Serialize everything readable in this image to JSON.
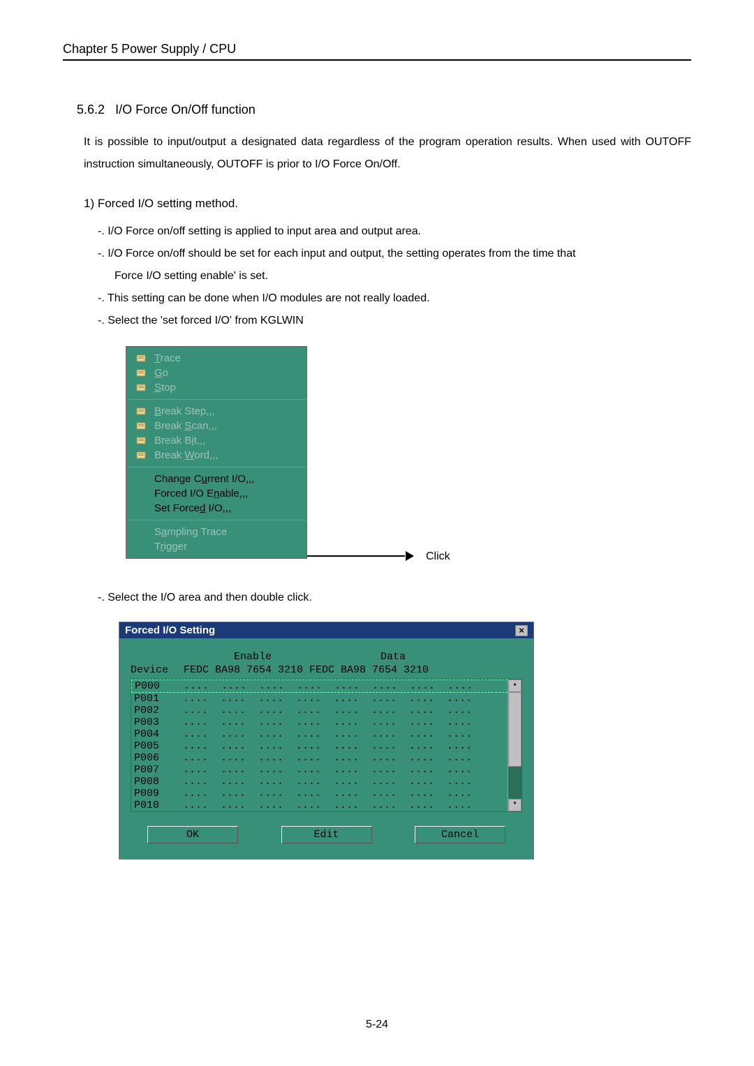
{
  "chapter_header": "Chapter 5    Power Supply / CPU",
  "section": {
    "number": "5.6.2",
    "title": "I/O Force  On/Off   function"
  },
  "body_text": "It  is  possible  to  input/output  a  designated  data  regardless  of  the  program  operation  results.  When  used  with  OUTOFF instruction simultaneously, OUTOFF is prior to I/O Force On/Off.",
  "subsection": "1)  Forced   I/O setting   method.",
  "bullets": [
    "-. I/O Force  on/off  setting  is  applied  to  input  area  and  output  area.",
    "-. I/O Force  on/off  should  be  set  for  each  input  and  output,  the  setting  operates  from  the  time  that",
    "Force  I/O setting  enable'  is  set.",
    "-. This  setting  can  be  done  when  I/O  modules  are  not  really  loaded.",
    "-. Select the    'set forced I/O' from KGLWIN"
  ],
  "menu": {
    "section1": [
      {
        "label": "Trace",
        "disabled": true,
        "underline_char": "T",
        "icon": "trace"
      },
      {
        "label": "Go",
        "disabled": true,
        "underline_char": "G",
        "icon": "go"
      },
      {
        "label": "Stop",
        "disabled": true,
        "underline_char": "S",
        "icon": "stop"
      }
    ],
    "section2": [
      {
        "label": "Break Step,,,",
        "disabled": true,
        "underline_char": "B",
        "icon": "bstep"
      },
      {
        "label": "Break Scan,,,",
        "disabled": true,
        "underline_char": "S",
        "icon": "bscan"
      },
      {
        "label": "Break Bit,,,",
        "disabled": true,
        "underline_char": "i",
        "icon": "bbit"
      },
      {
        "label": "Break Word,,,",
        "disabled": true,
        "underline_char": "W",
        "icon": "bword"
      }
    ],
    "section3": [
      {
        "label": "Change Current I/O,,,",
        "disabled": false,
        "underline_char": "u"
      },
      {
        "label": "Forced I/O Enable,,,",
        "disabled": false,
        "underline_char": "n"
      },
      {
        "label": "Set Forced I/O,,,",
        "disabled": false,
        "underline_char": "d"
      }
    ],
    "section4": [
      {
        "label": "Sampling Trace",
        "disabled": true,
        "underline_char": "a"
      },
      {
        "label": "Trigger",
        "disabled": true,
        "underline_char": "r"
      }
    ]
  },
  "click_label": "Click",
  "select_text": "-. Select the I/O area and then double click.",
  "dialog": {
    "title": "Forced I/O Setting",
    "header": {
      "device": "Device",
      "enable": "Enable",
      "data": "Data"
    },
    "subheader": "FEDC BA98 7654 3210 FEDC BA98 7654 3210",
    "rows": [
      "P000",
      "P001",
      "P002",
      "P003",
      "P004",
      "P005",
      "P006",
      "P007",
      "P008",
      "P009",
      "P010"
    ],
    "dots": "....  ....  ....  ....  ....  ....  ....  ....",
    "buttons": {
      "ok": "OK",
      "edit": "Edit",
      "cancel": "Cancel"
    }
  },
  "page_number": "5-24",
  "colors": {
    "menu_bg": "#389078",
    "menu_disabled": "#9cc4b6",
    "dialog_title_bg": "#1a3a78",
    "scrollbar": "#c0c0c0"
  }
}
